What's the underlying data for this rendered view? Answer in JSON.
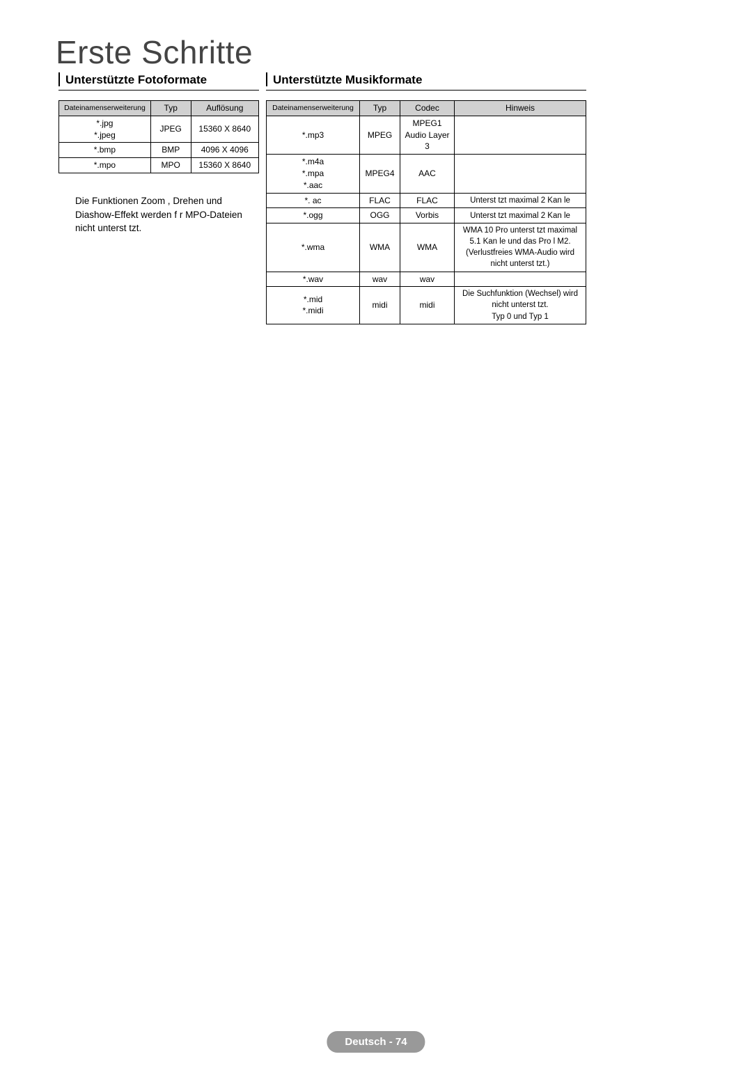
{
  "title": "Erste Schritte",
  "photo": {
    "subtitle": "Unterstützte Fotoformate",
    "headers": [
      "Dateinamenserweiterung",
      "Typ",
      "Auflösung"
    ],
    "rows": [
      {
        "ext": "*.jpg\n*.jpeg",
        "type": "JPEG",
        "res": "15360 X 8640"
      },
      {
        "ext": "*.bmp",
        "type": "BMP",
        "res": "4096 X 4096"
      },
      {
        "ext": "*.mpo",
        "type": "MPO",
        "res": "15360 X 8640"
      }
    ],
    "note": "Die Funktionen  Zoom ,  Drehen  und  Diashow-Effekt  werden f r MPO-Dateien nicht unterst tzt."
  },
  "music": {
    "subtitle": "Unterstützte Musikformate",
    "headers": [
      "Dateinamenserweiterung",
      "Typ",
      "Codec",
      "Hinweis"
    ],
    "rows": [
      {
        "ext": "*.mp3",
        "type": "MPEG",
        "codec": "MPEG1 Audio Layer 3",
        "note": ""
      },
      {
        "ext": "*.m4a\n*.mpa\n*.aac",
        "type": "MPEG4",
        "codec": "AAC",
        "note": ""
      },
      {
        "ext": "*. ac",
        "type": "FLAC",
        "codec": "FLAC",
        "note": "Unterst tzt maximal 2 Kan le"
      },
      {
        "ext": "*.ogg",
        "type": "OGG",
        "codec": "Vorbis",
        "note": "Unterst tzt maximal 2 Kan le"
      },
      {
        "ext": "*.wma",
        "type": "WMA",
        "codec": "WMA",
        "note": "WMA 10 Pro unterst tzt maximal 5.1 Kan le und das Pro l M2. (Verlustfreies WMA-Audio wird nicht unterst tzt.)"
      },
      {
        "ext": "*.wav",
        "type": "wav",
        "codec": "wav",
        "note": ""
      },
      {
        "ext": "*.mid\n*.midi",
        "type": "midi",
        "codec": "midi",
        "note": "Die Suchfunktion (Wechsel) wird nicht unterst tzt.\nTyp 0 und Typ 1"
      }
    ]
  },
  "footer": {
    "lang": "Deutsch",
    "page": "74"
  }
}
